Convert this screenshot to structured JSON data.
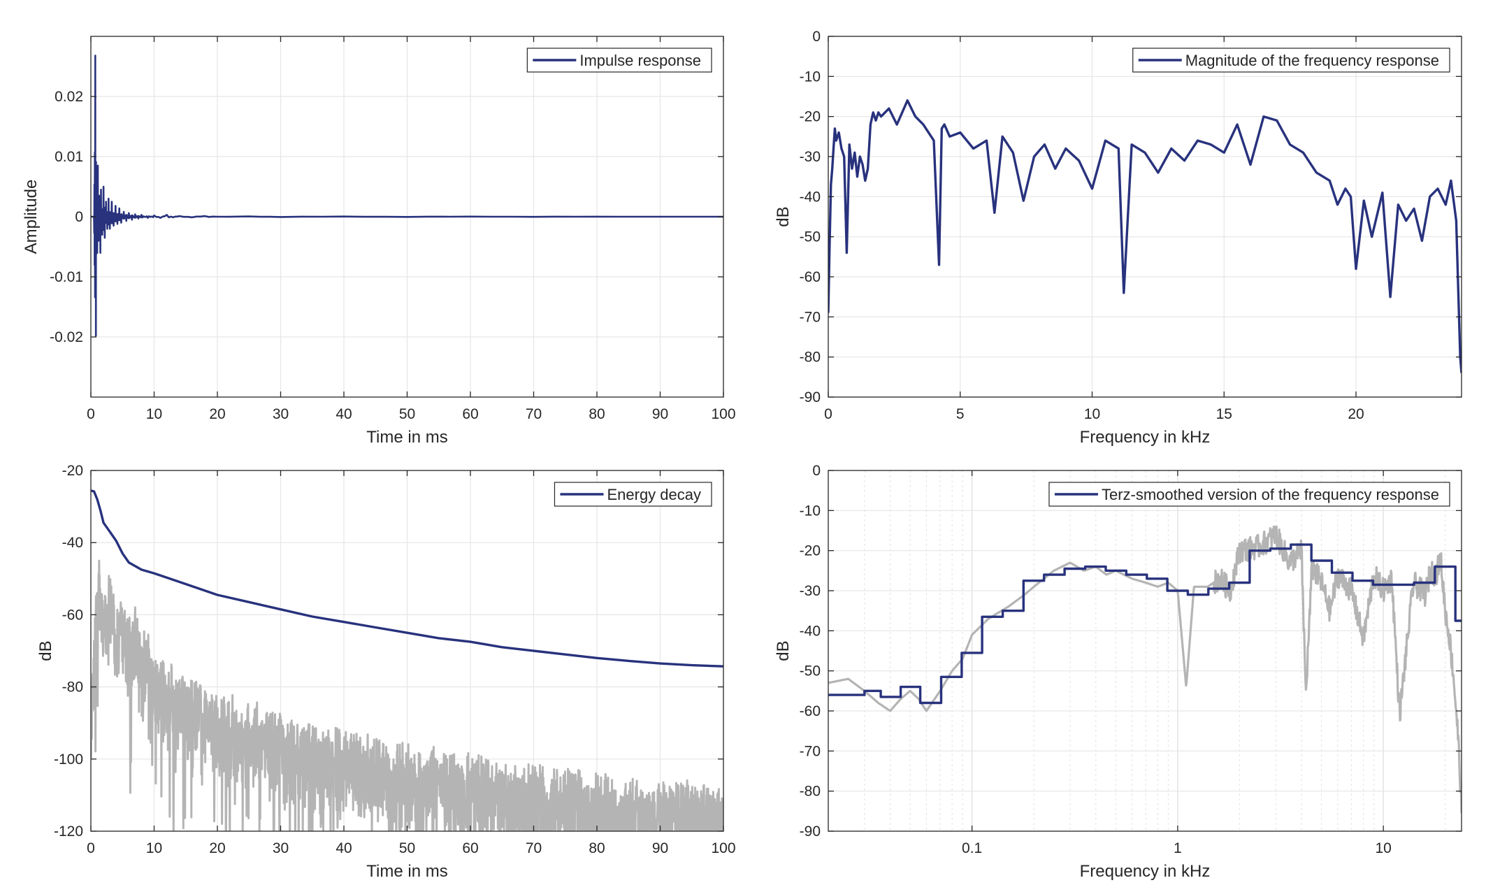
{
  "colors": {
    "main": "#28327d",
    "raw": "#b4b4b4",
    "grid": "#e6e6e6",
    "axis": "#262626"
  },
  "chart_data": [
    {
      "id": "impulse",
      "type": "line",
      "xlabel": "Time in ms",
      "ylabel": "Amplitude",
      "xlim": [
        0,
        100
      ],
      "ylim": [
        -0.03,
        0.03
      ],
      "xticks": [
        0,
        10,
        20,
        30,
        40,
        50,
        60,
        70,
        80,
        90,
        100
      ],
      "yticks": [
        -0.02,
        -0.01,
        0,
        0.01,
        0.02
      ],
      "yticklabels": [
        "-0.02",
        "-0.01",
        "0",
        "0.01",
        "0.02"
      ],
      "grid": true,
      "legend_position": "top-right",
      "series": [
        {
          "name": "Impulse response",
          "x": [
            0,
            0.5,
            0.7,
            0.8,
            0.9,
            1.0,
            1.1,
            1.2,
            1.3,
            1.5,
            1.6,
            1.8,
            2.0,
            2.2,
            2.4,
            2.6,
            2.8,
            3.0,
            3.3,
            3.6,
            3.9,
            4.2,
            4.5,
            4.8,
            5.2,
            5.6,
            6.0,
            6.5,
            7.0,
            7.5,
            8.0,
            9.0,
            10.0,
            11.0,
            12.0,
            13.0,
            14.0,
            16.0,
            18.0,
            20.0,
            25.0,
            30.0,
            40.0,
            50.0,
            60.0,
            70.0,
            80.0,
            90.0,
            100.0
          ],
          "values": [
            0,
            0,
            0.0268,
            -0.0198,
            0.008,
            -0.006,
            0.0085,
            -0.004,
            0.0035,
            -0.006,
            0.0045,
            -0.003,
            0.005,
            -0.0035,
            0.0025,
            -0.002,
            0.003,
            -0.002,
            0.0025,
            -0.0015,
            0.0018,
            -0.0012,
            0.0014,
            -0.001,
            0.0008,
            -0.0007,
            0.0006,
            -0.0005,
            0.0004,
            -0.0003,
            0.0003,
            -0.0002,
            0.0002,
            -0.0002,
            0.0003,
            -0.0001,
            0.0001,
            -0.0001,
            0.0001,
            0,
            5e-05,
            -5e-05,
            3e-05,
            -3e-05,
            2e-05,
            -2e-05,
            1e-05,
            0,
            0
          ]
        }
      ]
    },
    {
      "id": "magnitude",
      "type": "line",
      "xlabel": "Frequency in kHz",
      "ylabel": "dB",
      "xlim": [
        0,
        24
      ],
      "ylim": [
        -90,
        0
      ],
      "xticks": [
        0,
        5,
        10,
        15,
        20
      ],
      "yticks": [
        0,
        -10,
        -20,
        -30,
        -40,
        -50,
        -60,
        -70,
        -80,
        -90
      ],
      "grid": true,
      "legend_position": "top-right",
      "series": [
        {
          "name": "Magnitude of the frequency response",
          "x": [
            0.0,
            0.05,
            0.1,
            0.15,
            0.2,
            0.25,
            0.3,
            0.4,
            0.5,
            0.6,
            0.7,
            0.8,
            0.9,
            1.0,
            1.1,
            1.2,
            1.3,
            1.4,
            1.5,
            1.6,
            1.7,
            1.8,
            1.9,
            2.0,
            2.3,
            2.6,
            3.0,
            3.3,
            3.6,
            4.0,
            4.2,
            4.3,
            4.4,
            4.6,
            5.0,
            5.5,
            6.0,
            6.3,
            6.6,
            7.0,
            7.4,
            7.8,
            8.2,
            8.6,
            9.0,
            9.5,
            10.0,
            10.5,
            11.0,
            11.2,
            11.5,
            12.0,
            12.5,
            13.0,
            13.5,
            14.0,
            14.5,
            15.0,
            15.5,
            16.0,
            16.5,
            17.0,
            17.5,
            18.0,
            18.5,
            19.0,
            19.3,
            19.6,
            19.8,
            20.0,
            20.3,
            20.6,
            21.0,
            21.3,
            21.6,
            21.9,
            22.2,
            22.5,
            22.8,
            23.1,
            23.4,
            23.6,
            23.8,
            23.95,
            24.0
          ],
          "values": [
            -69,
            -52,
            -37,
            -33,
            -28,
            -23,
            -26,
            -24,
            -28,
            -30,
            -54,
            -27,
            -33,
            -29,
            -35,
            -30,
            -32,
            -36,
            -33,
            -22,
            -19,
            -21,
            -19,
            -20,
            -18,
            -22,
            -16,
            -20,
            -22,
            -26,
            -57,
            -23,
            -22,
            -25,
            -24,
            -28,
            -26,
            -44,
            -25,
            -29,
            -41,
            -30,
            -27,
            -33,
            -28,
            -31,
            -38,
            -26,
            -28,
            -64,
            -27,
            -29,
            -34,
            -28,
            -31,
            -26,
            -27,
            -29,
            -22,
            -32,
            -20,
            -21,
            -27,
            -29,
            -34,
            -36,
            -42,
            -38,
            -40,
            -58,
            -41,
            -50,
            -39,
            -65,
            -42,
            -46,
            -43,
            -51,
            -40,
            -38,
            -42,
            -36,
            -46,
            -80,
            -84
          ]
        }
      ]
    },
    {
      "id": "energy",
      "type": "line",
      "xlabel": "Time in ms",
      "ylabel": "dB",
      "xlim": [
        0,
        100
      ],
      "ylim": [
        -120,
        -20
      ],
      "xticks": [
        0,
        10,
        20,
        30,
        40,
        50,
        60,
        70,
        80,
        90,
        100
      ],
      "yticks": [
        -20,
        -40,
        -60,
        -80,
        -100,
        -120
      ],
      "grid": true,
      "legend_position": "top-right",
      "series": [
        {
          "name": "Energy decay",
          "x": [
            0,
            0.5,
            1,
            1.5,
            2,
            3,
            4,
            5,
            6,
            8,
            10,
            15,
            20,
            25,
            30,
            35,
            40,
            45,
            50,
            55,
            60,
            65,
            70,
            75,
            80,
            85,
            90,
            95,
            100
          ],
          "values": [
            -25.6,
            -25.8,
            -28,
            -31,
            -34.5,
            -37,
            -39.5,
            -43,
            -45.5,
            -47.5,
            -48.5,
            -51.5,
            -54.5,
            -56.5,
            -58.5,
            -60.5,
            -62,
            -63.5,
            -65,
            -66.5,
            -67.5,
            -69,
            -70,
            -71,
            -72,
            -72.8,
            -73.5,
            -74,
            -74.3
          ]
        },
        {
          "x": [
            0,
            1,
            2,
            3,
            4,
            5,
            6,
            7,
            8,
            9,
            10,
            15,
            20,
            25,
            30,
            40,
            50,
            60,
            70,
            80,
            90,
            100
          ],
          "values": [
            -85,
            -45,
            -58,
            -50,
            -62,
            -56,
            -66,
            -60,
            -70,
            -66,
            -75,
            -80,
            -86,
            -88,
            -92,
            -96,
            -100,
            -103,
            -106,
            -108,
            -110,
            -111
          ]
        }
      ]
    },
    {
      "id": "terz",
      "type": "line",
      "xscale": "log",
      "xlabel": "Frequency in kHz",
      "ylabel": "dB",
      "xlim": [
        0.02,
        24
      ],
      "ylim": [
        -90,
        0
      ],
      "xticks": [
        0.1,
        1,
        10
      ],
      "xticklabels": [
        "0.1",
        "1",
        "10"
      ],
      "yticks": [
        0,
        -10,
        -20,
        -30,
        -40,
        -50,
        -60,
        -70,
        -80,
        -90
      ],
      "grid": true,
      "legend_position": "top-right",
      "series": [
        {
          "name": "Terz-smoothed version of the frequency response",
          "step": true,
          "x": [
            0.02,
            0.03,
            0.036,
            0.045,
            0.056,
            0.0708,
            0.0891,
            0.112,
            0.141,
            0.178,
            0.224,
            0.282,
            0.355,
            0.447,
            0.562,
            0.708,
            0.891,
            1.12,
            1.41,
            1.78,
            2.24,
            2.82,
            3.55,
            4.47,
            5.62,
            7.08,
            8.91,
            11.2,
            14.1,
            17.8,
            22.4,
            24
          ],
          "values": [
            -56,
            -55,
            -56.5,
            -54,
            -58,
            -51.5,
            -45.5,
            -36.5,
            -35,
            -27.5,
            -26,
            -24.5,
            -24,
            -25,
            -26,
            -27,
            -30,
            -31,
            -29.5,
            -28,
            -20,
            -19.5,
            -18.5,
            -22.5,
            -25.5,
            -27.5,
            -28.5,
            -28.5,
            -28,
            -24,
            -37.5,
            -37.5
          ]
        },
        {
          "x": [
            0.02,
            0.025,
            0.03,
            0.035,
            0.04,
            0.045,
            0.05,
            0.055,
            0.06,
            0.07,
            0.08,
            0.09,
            0.1,
            0.12,
            0.15,
            0.18,
            0.2,
            0.25,
            0.3,
            0.35,
            0.4,
            0.45,
            0.5,
            0.6,
            0.7,
            0.8,
            0.9,
            1.0,
            1.1,
            1.2,
            1.4,
            1.6,
            1.8,
            2.0,
            2.5,
            3.0,
            3.5,
            4.0,
            4.2,
            4.5,
            5.0,
            5.5,
            6.0,
            7.0,
            8.0,
            9.0,
            10.0,
            11.0,
            12.0,
            14.0,
            16.0,
            17.0,
            18.0,
            19.0,
            20.0,
            21.0,
            22.0,
            23.0,
            24.0
          ],
          "values": [
            -53,
            -52,
            -55,
            -58,
            -60,
            -57,
            -55,
            -57,
            -60,
            -55,
            -50,
            -47,
            -41,
            -37,
            -34,
            -31,
            -29,
            -25,
            -23,
            -25,
            -24,
            -26,
            -25,
            -27,
            -28,
            -29,
            -28,
            -30,
            -54,
            -29,
            -29,
            -27,
            -30,
            -20,
            -19,
            -16,
            -23,
            -20,
            -56,
            -24,
            -28,
            -35,
            -26,
            -30,
            -42,
            -26,
            -30,
            -27,
            -61,
            -28,
            -31,
            -25,
            -26,
            -22,
            -35,
            -42,
            -52,
            -65,
            -84
          ]
        }
      ]
    }
  ]
}
